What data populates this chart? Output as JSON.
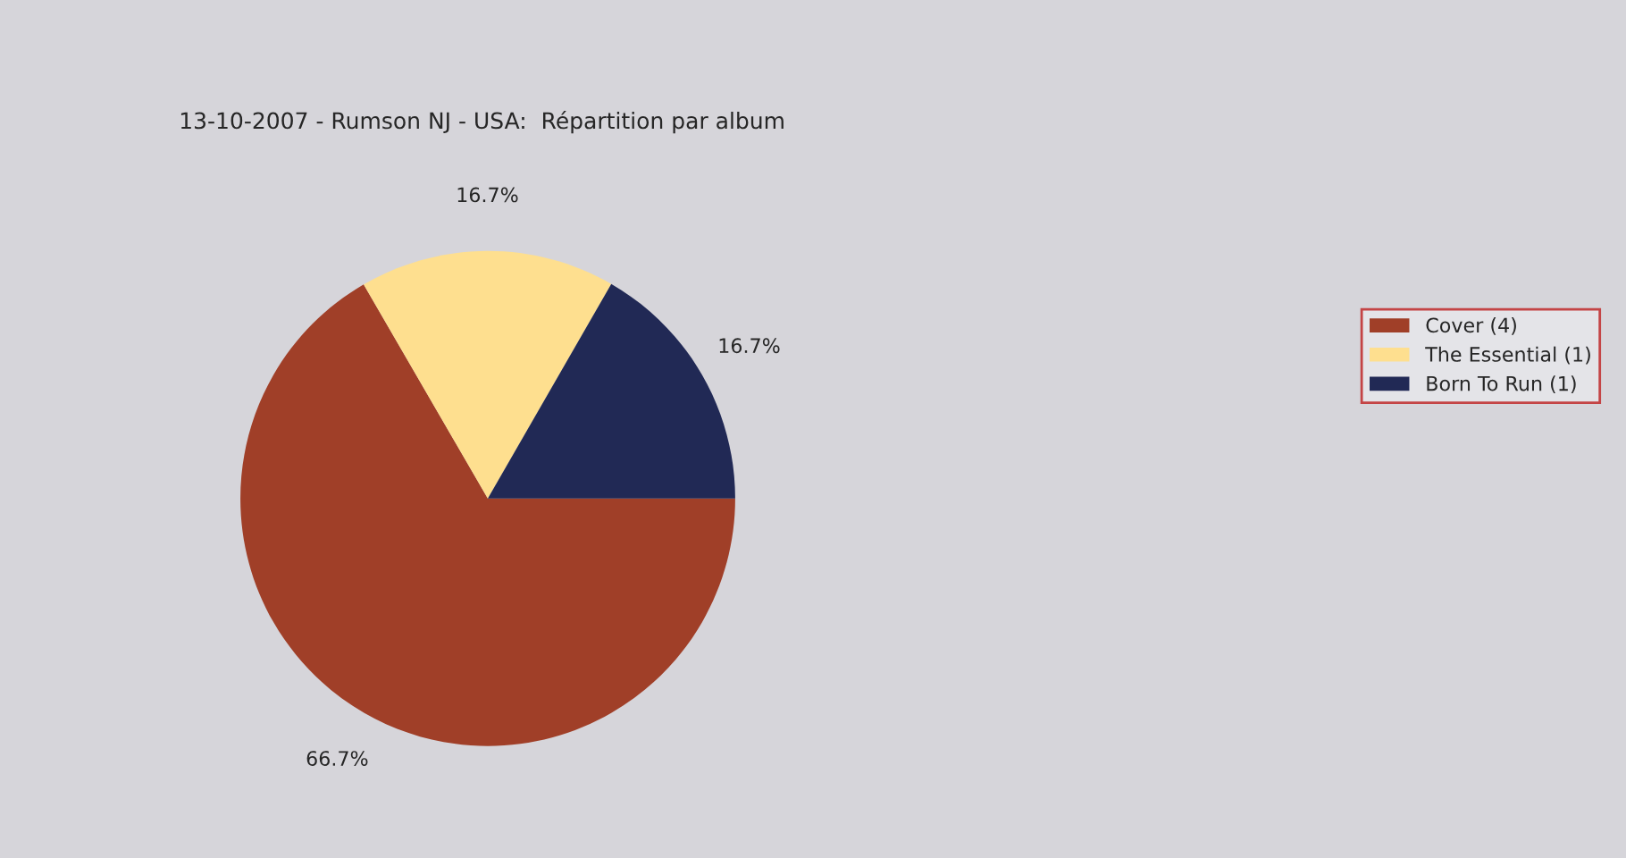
{
  "chart_data": {
    "type": "pie",
    "title": "13-10-2007 - Rumson NJ - USA:  Répartition par album",
    "categories": [
      "Cover (4)",
      "The Essential (1)",
      "Born To Run (1)"
    ],
    "values": [
      66.7,
      16.7,
      16.7
    ],
    "value_labels": [
      "66.7%",
      "16.7%",
      "16.7%"
    ],
    "colors": [
      "#a03f28",
      "#fedf8f",
      "#212955"
    ],
    "legend": "right"
  }
}
